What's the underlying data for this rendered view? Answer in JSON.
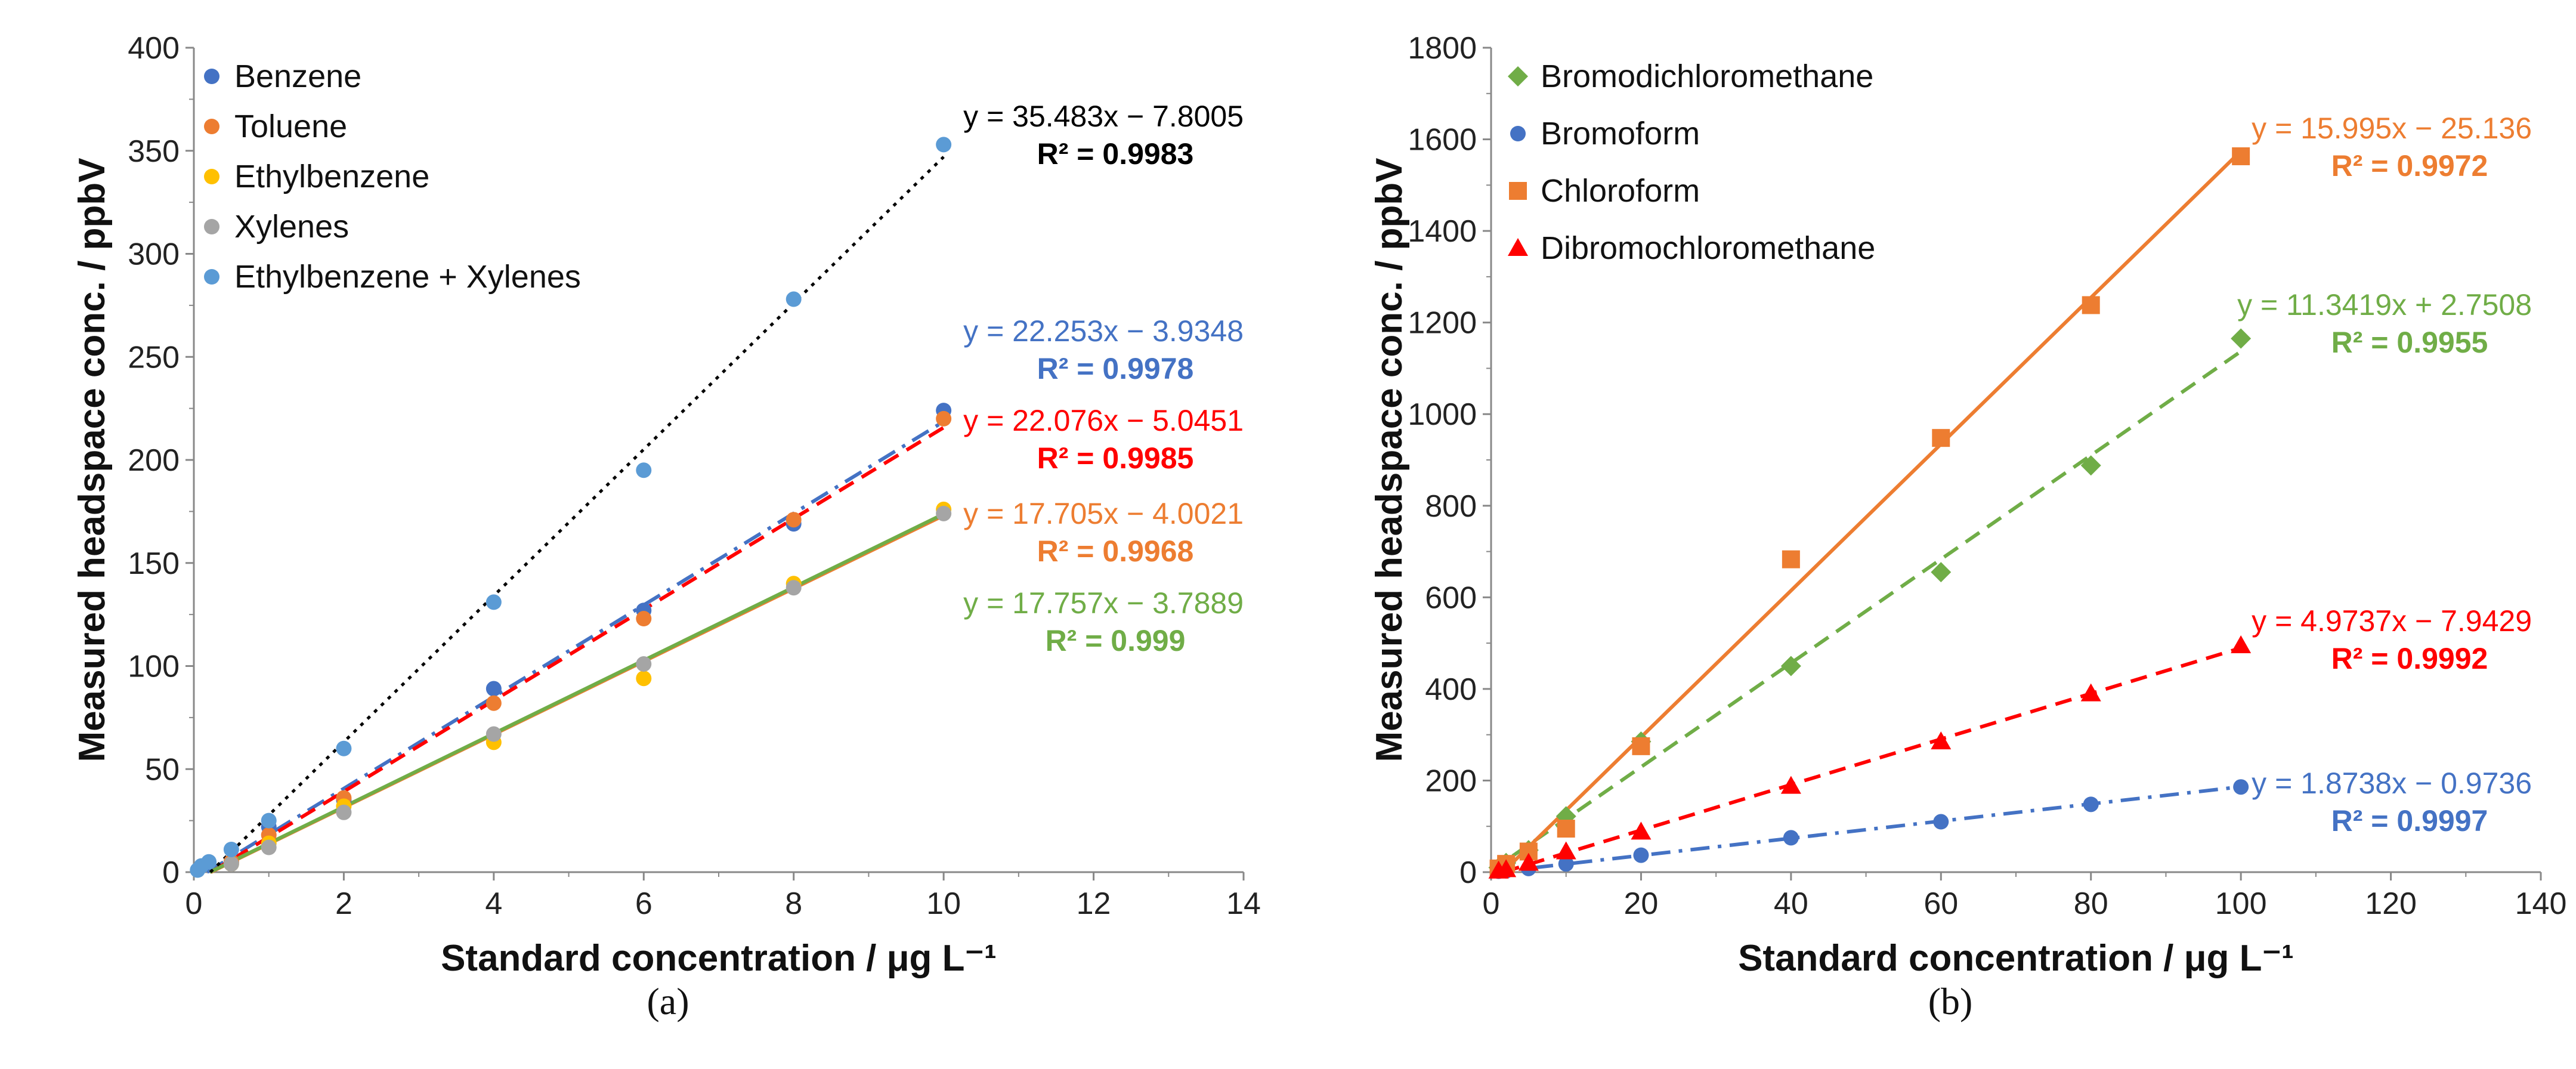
{
  "chart_data": [
    {
      "panel": "a",
      "panel_label": "(a)",
      "type": "scatter",
      "xlabel": "Standard concentration / μg L⁻¹",
      "ylabel": "Measured headspace conc. / ppbV",
      "xlim": [
        0,
        14
      ],
      "ylim": [
        0,
        400
      ],
      "x_ticks": [
        0,
        2,
        4,
        6,
        8,
        10,
        12,
        14
      ],
      "y_ticks": [
        0,
        50,
        100,
        150,
        200,
        250,
        300,
        350,
        400
      ],
      "legend_position": "top-left",
      "series": [
        {
          "name": "Benzene",
          "color": "#4472C4",
          "marker": "circle",
          "x": [
            0.5,
            1,
            2,
            4,
            6,
            8,
            10
          ],
          "y": [
            5,
            22,
            35,
            89,
            127,
            169,
            224
          ],
          "fit": {
            "slope": 22.253,
            "intercept": -3.9348,
            "color": "#4472C4",
            "dash": "dashdot",
            "label": "y = 22.253x − 3.9348",
            "r2": "R² = 0.9978"
          }
        },
        {
          "name": "Toluene",
          "color": "#ED7D31",
          "marker": "circle",
          "x": [
            0.5,
            1,
            2,
            4,
            6,
            8,
            10
          ],
          "y": [
            5,
            18,
            36,
            82,
            123,
            171,
            220
          ],
          "fit": {
            "slope": 22.076,
            "intercept": -5.0451,
            "color": "#FF0000",
            "dash": "dash",
            "label": "y = 22.076x − 5.0451",
            "r2": "R² = 0.9985"
          }
        },
        {
          "name": "Ethylbenzene",
          "color": "#FFC000",
          "marker": "circle",
          "x": [
            0.5,
            1,
            2,
            4,
            6,
            8,
            10
          ],
          "y": [
            4,
            14,
            32,
            63,
            94,
            140,
            176
          ],
          "fit": {
            "slope": 17.705,
            "intercept": -4.0021,
            "color": "#ED7D31",
            "dash": "solid",
            "label": "y = 17.705x − 4.0021",
            "r2": "R² = 0.9968"
          }
        },
        {
          "name": "Xylenes",
          "color": "#A5A5A5",
          "marker": "circle",
          "x": [
            0.5,
            1,
            2,
            4,
            6,
            8,
            10
          ],
          "y": [
            4,
            12,
            29,
            67,
            101,
            138,
            174
          ],
          "fit": {
            "slope": 17.757,
            "intercept": -3.7889,
            "color": "#70AD47",
            "dash": "solid",
            "label": "y = 17.757x − 3.7889",
            "r2": "R² = 0.999"
          }
        },
        {
          "name": "Ethylbenzene + Xylenes",
          "color": "#5B9BD5",
          "marker": "circle",
          "x": [
            0.05,
            0.1,
            0.2,
            0.5,
            1,
            2,
            4,
            6,
            8,
            10
          ],
          "y": [
            1,
            3,
            5,
            11,
            25,
            60,
            131,
            195,
            278,
            353
          ],
          "fit": {
            "slope": 35.483,
            "intercept": -7.8005,
            "color": "#000000",
            "dash": "dot",
            "label": "y = 35.483x − 7.8005",
            "r2": "R² = 0.9983"
          }
        }
      ]
    },
    {
      "panel": "b",
      "panel_label": "(b)",
      "type": "scatter",
      "xlabel": "Standard concentration / μg L⁻¹",
      "ylabel": "Measured headspace conc. / ppbV",
      "xlim": [
        0,
        140
      ],
      "ylim": [
        0,
        1800
      ],
      "x_ticks": [
        0,
        20,
        40,
        60,
        80,
        100,
        120,
        140
      ],
      "y_ticks": [
        0,
        200,
        400,
        600,
        800,
        1000,
        1200,
        1400,
        1600,
        1800
      ],
      "legend_position": "top-left",
      "series": [
        {
          "name": "Bromodichloromethane",
          "color": "#70AD47",
          "marker": "diamond",
          "x": [
            1,
            2,
            5,
            10,
            20,
            40,
            60,
            80,
            100
          ],
          "y": [
            10,
            20,
            48,
            122,
            285,
            450,
            655,
            888,
            1165
          ],
          "fit": {
            "slope": 11.3419,
            "intercept": 2.7508,
            "color": "#70AD47",
            "dash": "dash",
            "label": "y = 11.3419x + 2.7508",
            "r2": "R² = 0.9955"
          }
        },
        {
          "name": "Bromoform",
          "color": "#4472C4",
          "marker": "circle",
          "x": [
            1,
            2,
            5,
            10,
            20,
            40,
            60,
            80,
            100
          ],
          "y": [
            2,
            3,
            8,
            18,
            37,
            75,
            110,
            148,
            186
          ],
          "fit": {
            "slope": 1.8738,
            "intercept": -0.9736,
            "color": "#4472C4",
            "dash": "dashdot",
            "label": "y = 1.8738x − 0.9736",
            "r2": "R² = 0.9997"
          }
        },
        {
          "name": "Chloroform",
          "color": "#ED7D31",
          "marker": "square",
          "x": [
            1,
            2,
            5,
            10,
            20,
            40,
            60,
            80,
            100
          ],
          "y": [
            8,
            18,
            45,
            95,
            275,
            683,
            948,
            1238,
            1563
          ],
          "fit": {
            "slope": 15.995,
            "intercept": -25.136,
            "color": "#ED7D31",
            "dash": "solid",
            "label": "y = 15.995x − 25.136",
            "r2": "R² = 0.9972"
          }
        },
        {
          "name": "Dibromochloromethane",
          "color": "#FF0000",
          "marker": "triangle",
          "x": [
            1,
            2,
            5,
            10,
            20,
            40,
            60,
            80,
            100
          ],
          "y": [
            3,
            6,
            20,
            45,
            88,
            188,
            285,
            390,
            495
          ],
          "fit": {
            "slope": 4.9737,
            "intercept": -7.9429,
            "color": "#FF0000",
            "dash": "dash",
            "label": "y = 4.9737x − 7.9429",
            "r2": "R² = 0.9992"
          }
        }
      ]
    }
  ]
}
